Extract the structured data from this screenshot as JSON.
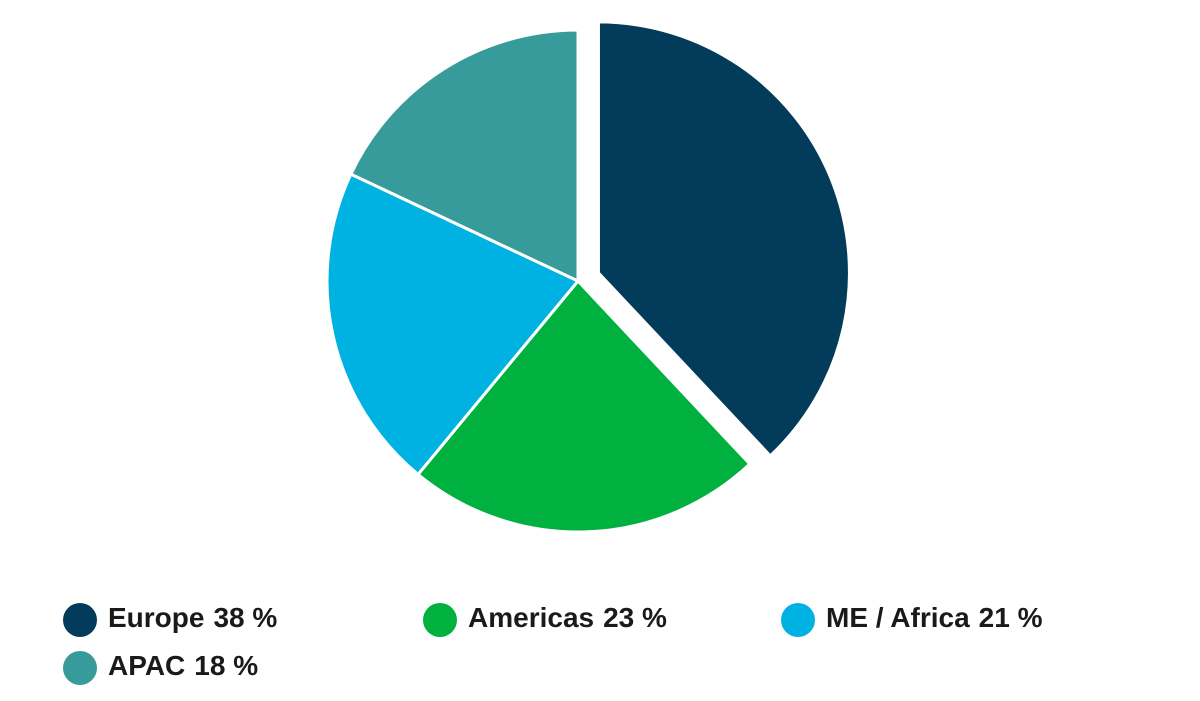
{
  "chart_data": {
    "type": "pie",
    "categories": [
      "Europe",
      "Americas",
      "ME / Africa",
      "APAC"
    ],
    "values": [
      38,
      23,
      21,
      18
    ],
    "value_labels": [
      "38 %",
      "23 %",
      "21 %",
      "18 %"
    ],
    "colors": [
      "#033b5a",
      "#00b140",
      "#00b2e1",
      "#379b9b"
    ],
    "exploded": [
      0
    ],
    "legend": "bottom"
  }
}
